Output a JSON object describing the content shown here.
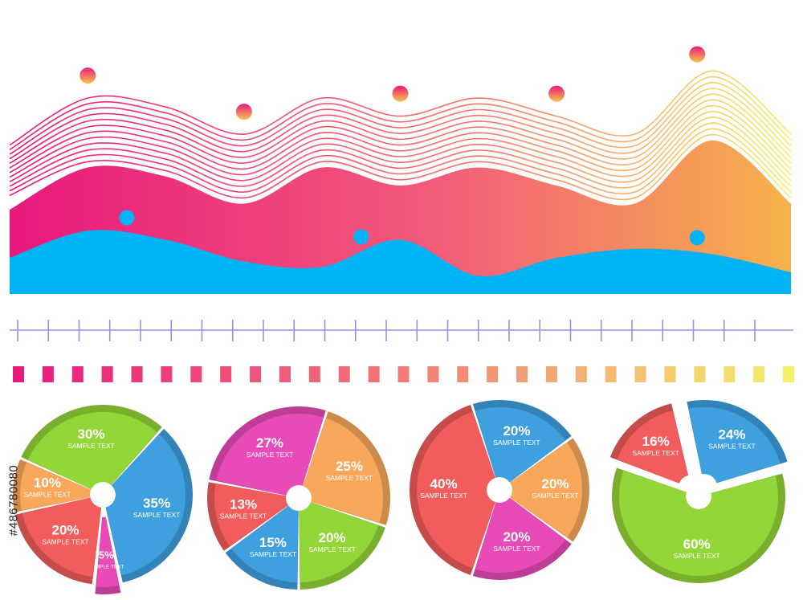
{
  "stock_id": "#486780080",
  "colors": {
    "red": "#f25c5c",
    "orange": "#f9a85b",
    "green": "#93d637",
    "pink": "#e84bb8",
    "blue": "#3fa0e0",
    "magenta": "#e8197d",
    "yellow": "#f3f06a",
    "cyan": "#00b3f5",
    "axis": "#8f97d8"
  },
  "chart_data": [
    {
      "type": "area",
      "layers": [
        {
          "name": "",
          "values": [
            6.0,
            7.0,
            6.5,
            5.0,
            7.0,
            6.0,
            7.0,
            6.0,
            5.0,
            8.5,
            5.0
          ]
        },
        {
          "name": "",
          "values": [
            2.0,
            3.5,
            3.0,
            1.8,
            1.5,
            3.0,
            1.0,
            2.0,
            2.5,
            2.2,
            1.2
          ]
        }
      ],
      "markers": [
        {
          "layer": 0,
          "x": 1.0
        },
        {
          "layer": 0,
          "x": 3.0
        },
        {
          "layer": 0,
          "x": 5.0
        },
        {
          "layer": 0,
          "x": 7.0
        },
        {
          "layer": 0,
          "x": 8.8
        },
        {
          "layer": 1,
          "x": 1.5
        },
        {
          "layer": 1,
          "x": 4.5
        },
        {
          "layer": 1,
          "x": 8.8
        }
      ],
      "contour_lines": 12,
      "axis_ticks": 25,
      "gradient_bars": 27
    },
    {
      "type": "pie",
      "labels": [
        "30%",
        "35%",
        "5%",
        "20%",
        "10%"
      ],
      "values": [
        30,
        35,
        5,
        20,
        10
      ],
      "colors": [
        "green",
        "blue",
        "pink",
        "red",
        "orange"
      ],
      "sublabels": [
        "SAMPLE TEXT",
        "SAMPLE TEXT",
        "SAMPLE TEXT",
        "SAMPLE TEXT",
        "SAMPLE TEXT"
      ]
    },
    {
      "type": "pie",
      "labels": [
        "25%",
        "20%",
        "15%",
        "13%",
        "27%"
      ],
      "values": [
        25,
        20,
        15,
        13,
        27
      ],
      "colors": [
        "orange",
        "green",
        "blue",
        "red",
        "pink"
      ],
      "sublabels": [
        "SAMPLE TEXT",
        "SAMPLE TEXT",
        "SAMPLE TEXT",
        "SAMPLE TEXT",
        "SAMPLE TEXT"
      ]
    },
    {
      "type": "pie",
      "labels": [
        "20%",
        "20%",
        "20%",
        "40%"
      ],
      "values": [
        20,
        20,
        20,
        40
      ],
      "colors": [
        "blue",
        "orange",
        "pink",
        "red"
      ],
      "sublabels": [
        "SAMPLE TEXT",
        "SAMPLE TEXT",
        "SAMPLE TEXT",
        "SAMPLE TEXT"
      ]
    },
    {
      "type": "pie",
      "labels": [
        "16%",
        "24%",
        "60%"
      ],
      "values": [
        16,
        24,
        60
      ],
      "colors": [
        "red",
        "blue",
        "green"
      ],
      "sublabels": [
        "SAMPLE TEXT",
        "SAMPLE TEXT",
        "SAMPLE TEXT"
      ]
    }
  ]
}
